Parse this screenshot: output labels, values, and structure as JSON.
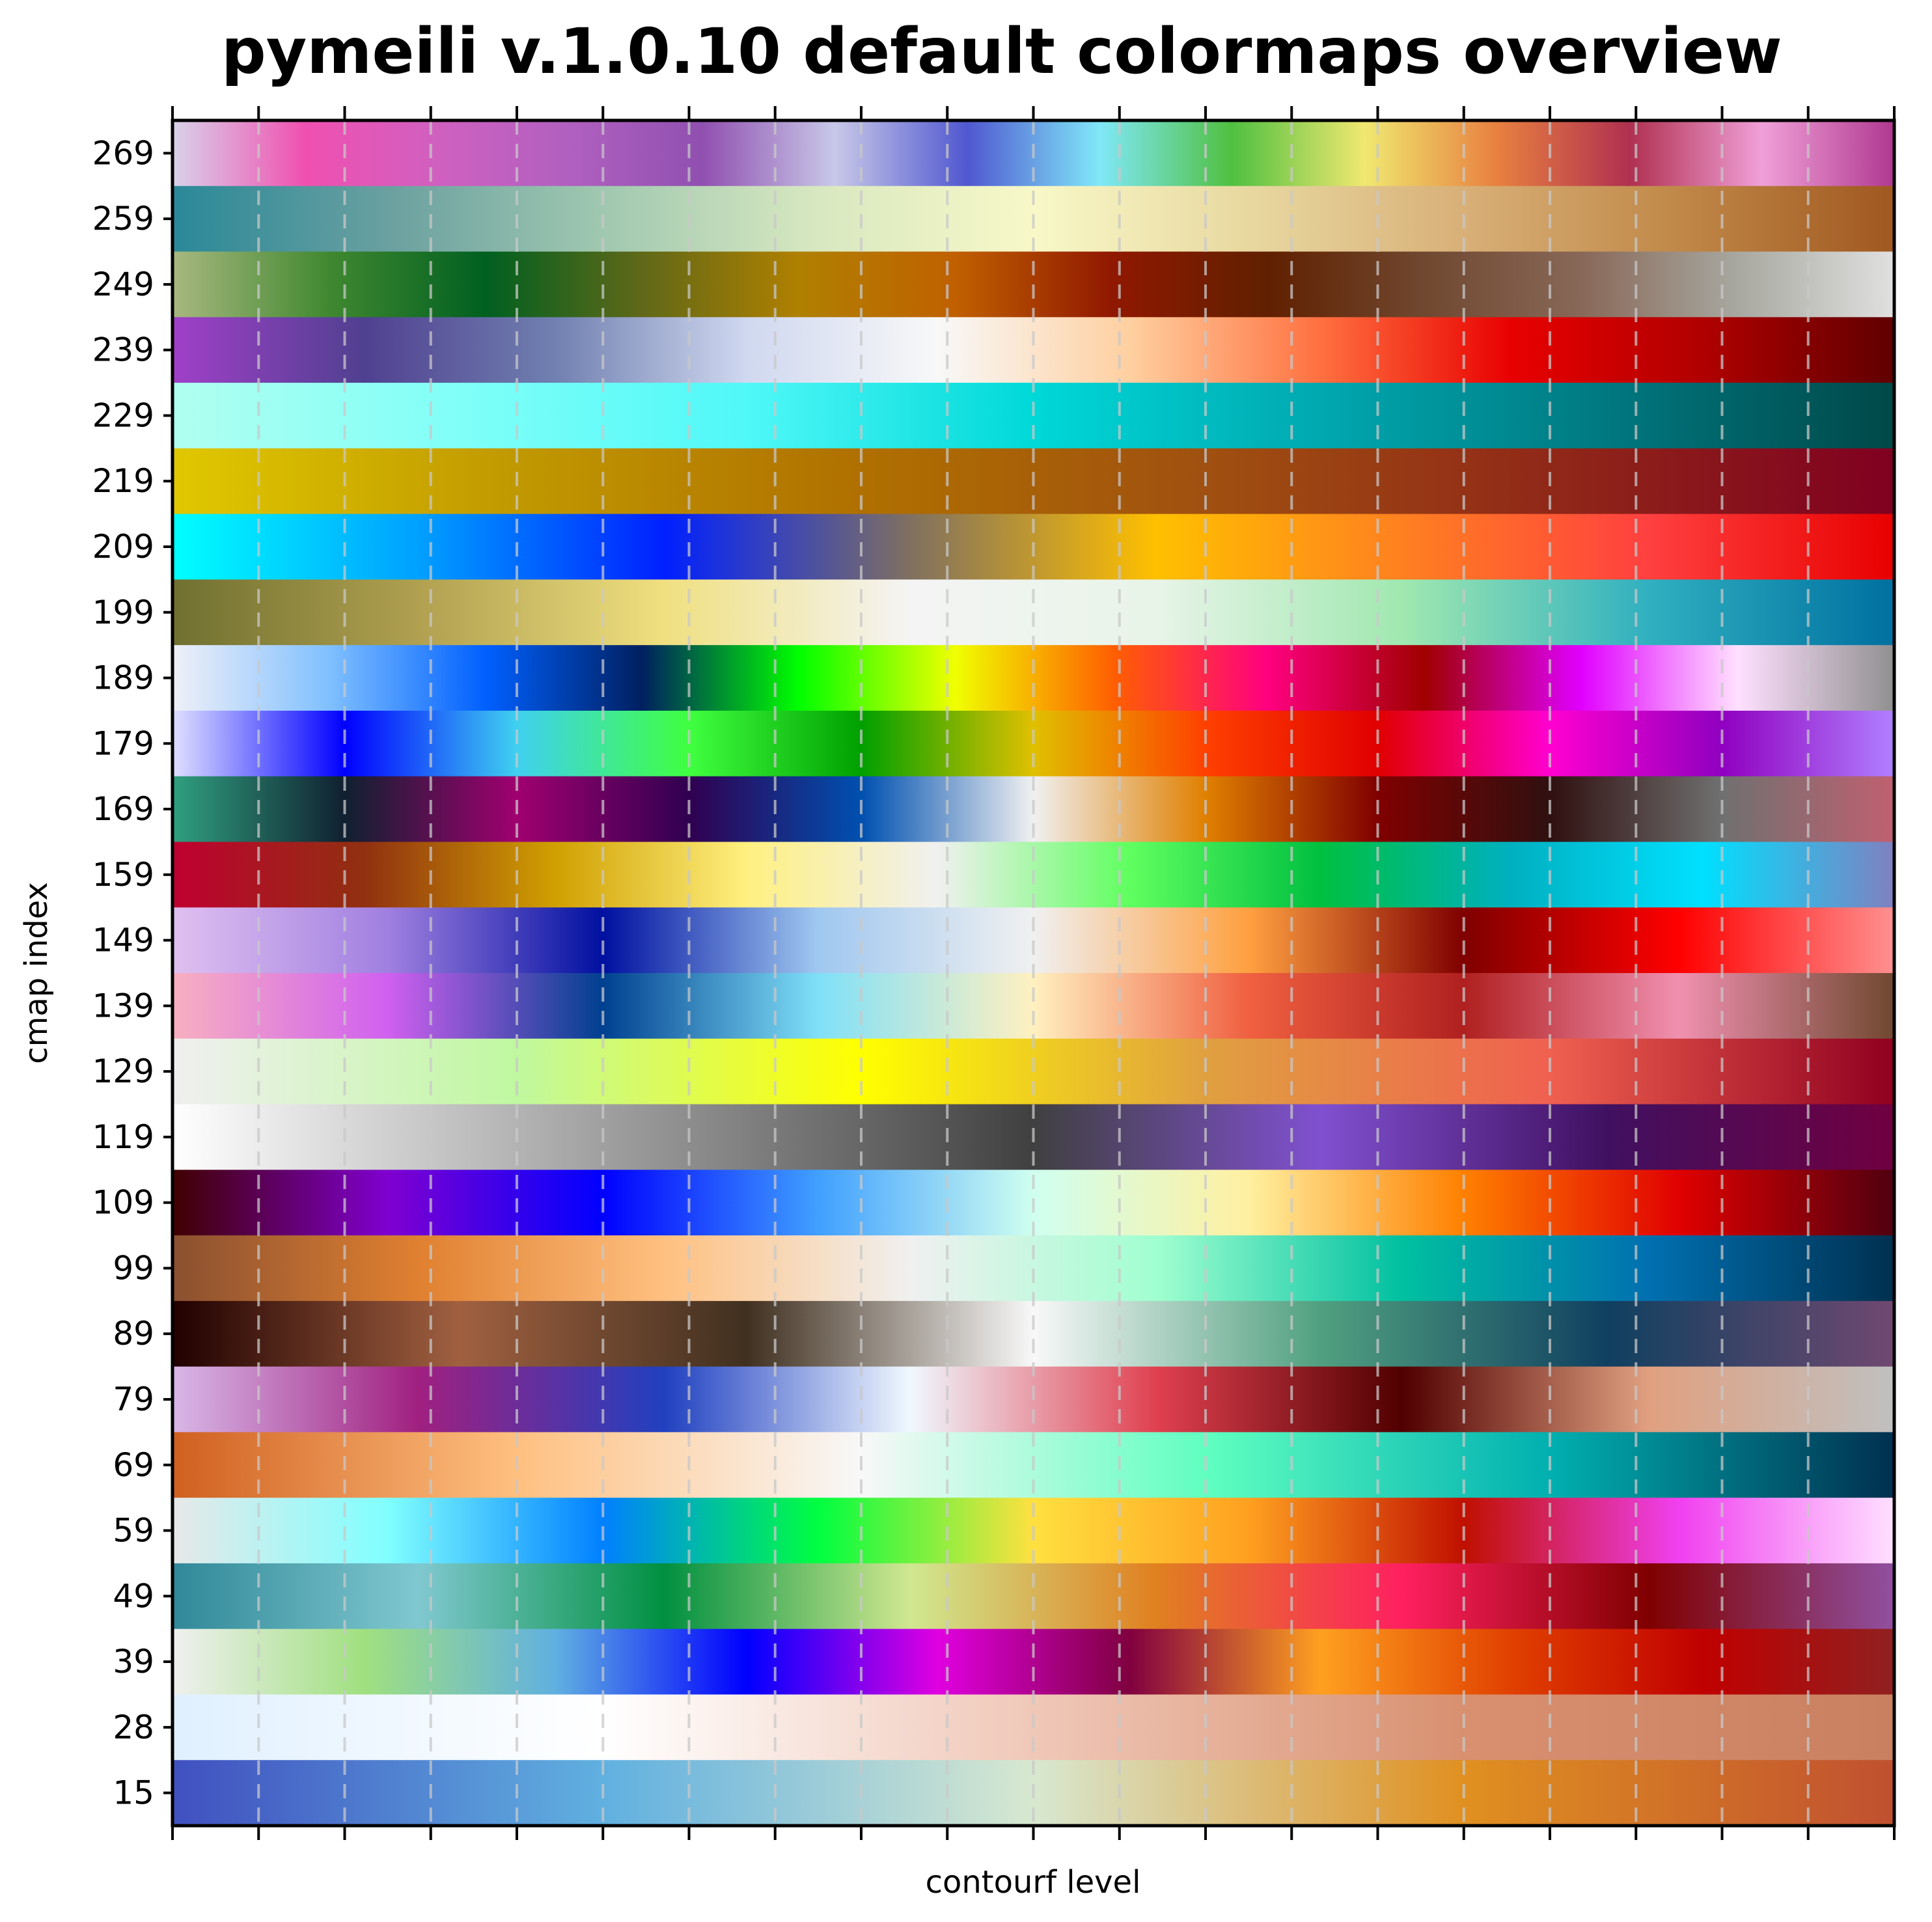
{
  "chart_data": {
    "type": "heatmap",
    "title": "pymeili v.1.0.10 default colormaps overview",
    "xlabel": "contourf level",
    "ylabel": "cmap index",
    "x_ticks_count": 21,
    "x_tick_labels_shown": false,
    "grid": "vertical dashed lines at x ticks",
    "rows": [
      {
        "label": "269",
        "colors": [
          "#d8d2ea",
          "#f050b0",
          "#d060c0",
          "#b060c0",
          "#9050b0",
          "#c8c8e8",
          "#5058d0",
          "#80e8f8",
          "#50c040",
          "#f0e870",
          "#e88040",
          "#b03050",
          "#f0a0d8",
          "#b03890"
        ]
      },
      {
        "label": "259",
        "colors": [
          "#2a8898",
          "#6aa0a0",
          "#a0c8b0",
          "#d8e8c0",
          "#f8f8c8",
          "#e8d8a0",
          "#d8b078",
          "#c08848",
          "#a05820"
        ]
      },
      {
        "label": "249",
        "colors": [
          "#a8b880",
          "#408830",
          "#006020",
          "#606818",
          "#b08000",
          "#c06000",
          "#901800",
          "#602000",
          "#704830",
          "#886858",
          "#a8a8a0",
          "#e0e0e0"
        ]
      },
      {
        "label": "239",
        "colors": [
          "#a040c8",
          "#504090",
          "#7080b0",
          "#d0d8f0",
          "#f8f8f8",
          "#ffd0a0",
          "#ff7040",
          "#e80000",
          "#b00000",
          "#600000"
        ]
      },
      {
        "label": "229",
        "colors": [
          "#b0fff0",
          "#80fff8",
          "#50f8f8",
          "#00d8d8",
          "#00a8b0",
          "#007880",
          "#004848"
        ]
      },
      {
        "label": "219",
        "colors": [
          "#e0c800",
          "#c09800",
          "#b07000",
          "#a05010",
          "#902818",
          "#800020"
        ]
      },
      {
        "label": "209",
        "colors": [
          "#00ffff",
          "#00a0ff",
          "#0020ff",
          "#807060",
          "#ffc000",
          "#ff8020",
          "#ff4040",
          "#e80000"
        ]
      },
      {
        "label": "199",
        "colors": [
          "#707030",
          "#b0a050",
          "#f0e080",
          "#f4f4f4",
          "#e8f4e8",
          "#a0e8b0",
          "#30b0c0",
          "#0070a0"
        ]
      },
      {
        "label": "189",
        "colors": [
          "#f0f0f8",
          "#80c0ff",
          "#0060ff",
          "#002060",
          "#00ff00",
          "#f0ff00",
          "#ff6000",
          "#ff0080",
          "#a00000",
          "#e000ff",
          "#ffe0ff",
          "#909090"
        ]
      },
      {
        "label": "179",
        "colors": [
          "#e0e0ff",
          "#0000ff",
          "#40d0f0",
          "#40ff40",
          "#00a000",
          "#e0c000",
          "#ff4000",
          "#e00000",
          "#ff00d0",
          "#9000c0",
          "#b080ff"
        ]
      },
      {
        "label": "169",
        "colors": [
          "#30a080",
          "#102030",
          "#a00070",
          "#300050",
          "#0050b0",
          "#f0f0f0",
          "#e08000",
          "#800000",
          "#301010",
          "#707070",
          "#c06070"
        ]
      },
      {
        "label": "159",
        "colors": [
          "#c00030",
          "#903010",
          "#d0a000",
          "#fff080",
          "#f0f0f0",
          "#60ff60",
          "#00c040",
          "#00b0c0",
          "#00e0ff",
          "#8080c0"
        ]
      },
      {
        "label": "149",
        "colors": [
          "#e0c0f0",
          "#a080e0",
          "#0010a0",
          "#a0c8f0",
          "#f0f0f0",
          "#ffa040",
          "#800000",
          "#ff0000",
          "#ff9090"
        ]
      },
      {
        "label": "139",
        "colors": [
          "#f8b0c0",
          "#d060f0",
          "#004090",
          "#80e0f8",
          "#fff0c0",
          "#f06040",
          "#b02020",
          "#f090b0",
          "#704830"
        ]
      },
      {
        "label": "129",
        "colors": [
          "#f0f0f0",
          "#c0f8a0",
          "#ffff00",
          "#e0a040",
          "#f06050",
          "#900020"
        ]
      },
      {
        "label": "119",
        "colors": [
          "#ffffff",
          "#c0c0c0",
          "#808080",
          "#404040",
          "#8050d0",
          "#401060",
          "#700040"
        ]
      },
      {
        "label": "109",
        "colors": [
          "#400000",
          "#8000d0",
          "#0000ff",
          "#40a0ff",
          "#d0fff0",
          "#fff0a0",
          "#ff8000",
          "#e00000",
          "#500010"
        ]
      },
      {
        "label": "99",
        "colors": [
          "#8a5030",
          "#e08030",
          "#ffc080",
          "#f0f0f0",
          "#a0ffd0",
          "#00c0a0",
          "#0070b0",
          "#003050"
        ]
      },
      {
        "label": "89",
        "colors": [
          "#200000",
          "#a06040",
          "#403020",
          "#f8f8f8",
          "#50a080",
          "#104060",
          "#704870"
        ]
      },
      {
        "label": "79",
        "colors": [
          "#d8b8e8",
          "#a02080",
          "#2040c0",
          "#f0f8ff",
          "#e04050",
          "#500000",
          "#e0a080",
          "#c0c0c0"
        ]
      },
      {
        "label": "69",
        "colors": [
          "#d06020",
          "#ffc080",
          "#f8f8f8",
          "#60ffc0",
          "#00b0b0",
          "#003050"
        ]
      },
      {
        "label": "59",
        "colors": [
          "#e8e8e8",
          "#80ffff",
          "#0080ff",
          "#00ff40",
          "#ffe040",
          "#ffa020",
          "#c01000",
          "#f040f0",
          "#ffe0ff"
        ]
      },
      {
        "label": "49",
        "colors": [
          "#308898",
          "#80c8d0",
          "#009040",
          "#d0e890",
          "#e08020",
          "#ff2060",
          "#800000",
          "#9050a0"
        ]
      },
      {
        "label": "39",
        "colors": [
          "#f0f0f0",
          "#a0e080",
          "#60b0e0",
          "#0000ff",
          "#e000e0",
          "#800040",
          "#ffa020",
          "#e04000",
          "#c00000",
          "#902020"
        ]
      },
      {
        "label": "28",
        "colors": [
          "#e0f0ff",
          "#ffffff",
          "#f0c8b8",
          "#d89070",
          "#c88060"
        ]
      },
      {
        "label": "15",
        "colors": [
          "#4050c0",
          "#60b0e0",
          "#d8e8d0",
          "#e09020",
          "#c05030"
        ]
      }
    ]
  }
}
